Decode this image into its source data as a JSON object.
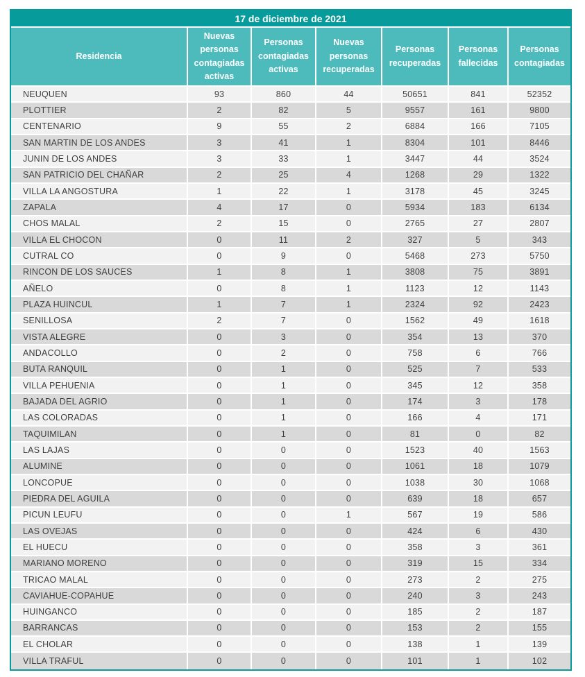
{
  "colors": {
    "frame_teal": "#089b9b",
    "header_teal": "#4dbabc",
    "row_light": "#f2f2f2",
    "row_dark": "#d9d9d9",
    "body_text": "#3f3f3f",
    "separator": "#ffffff"
  },
  "chart_data": {
    "type": "table",
    "title": "17 de diciembre de 2021",
    "columns": [
      "Residencia",
      "Nuevas personas contagiadas activas",
      "Personas contagiadas activas",
      "Nuevas personas recuperadas",
      "Personas recuperadas",
      "Personas fallecidas",
      "Personas contagiadas"
    ],
    "rows": [
      [
        "NEUQUEN",
        93,
        860,
        44,
        50651,
        841,
        52352
      ],
      [
        "PLOTTIER",
        2,
        82,
        5,
        9557,
        161,
        9800
      ],
      [
        "CENTENARIO",
        9,
        55,
        2,
        6884,
        166,
        7105
      ],
      [
        "SAN MARTIN DE LOS ANDES",
        3,
        41,
        1,
        8304,
        101,
        8446
      ],
      [
        "JUNIN DE LOS ANDES",
        3,
        33,
        1,
        3447,
        44,
        3524
      ],
      [
        "SAN PATRICIO DEL CHAÑAR",
        2,
        25,
        4,
        1268,
        29,
        1322
      ],
      [
        "VILLA LA ANGOSTURA",
        1,
        22,
        1,
        3178,
        45,
        3245
      ],
      [
        "ZAPALA",
        4,
        17,
        0,
        5934,
        183,
        6134
      ],
      [
        "CHOS MALAL",
        2,
        15,
        0,
        2765,
        27,
        2807
      ],
      [
        "VILLA EL CHOCON",
        0,
        11,
        2,
        327,
        5,
        343
      ],
      [
        "CUTRAL CO",
        0,
        9,
        0,
        5468,
        273,
        5750
      ],
      [
        "RINCON DE LOS SAUCES",
        1,
        8,
        1,
        3808,
        75,
        3891
      ],
      [
        "AÑELO",
        0,
        8,
        1,
        1123,
        12,
        1143
      ],
      [
        "PLAZA HUINCUL",
        1,
        7,
        1,
        2324,
        92,
        2423
      ],
      [
        "SENILLOSA",
        2,
        7,
        0,
        1562,
        49,
        1618
      ],
      [
        "VISTA ALEGRE",
        0,
        3,
        0,
        354,
        13,
        370
      ],
      [
        "ANDACOLLO",
        0,
        2,
        0,
        758,
        6,
        766
      ],
      [
        "BUTA RANQUIL",
        0,
        1,
        0,
        525,
        7,
        533
      ],
      [
        "VILLA PEHUENIA",
        0,
        1,
        0,
        345,
        12,
        358
      ],
      [
        "BAJADA DEL AGRIO",
        0,
        1,
        0,
        174,
        3,
        178
      ],
      [
        "LAS COLORADAS",
        0,
        1,
        0,
        166,
        4,
        171
      ],
      [
        "TAQUIMILAN",
        0,
        1,
        0,
        81,
        0,
        82
      ],
      [
        "LAS LAJAS",
        0,
        0,
        0,
        1523,
        40,
        1563
      ],
      [
        "ALUMINE",
        0,
        0,
        0,
        1061,
        18,
        1079
      ],
      [
        "LONCOPUE",
        0,
        0,
        0,
        1038,
        30,
        1068
      ],
      [
        "PIEDRA DEL AGUILA",
        0,
        0,
        0,
        639,
        18,
        657
      ],
      [
        "PICUN LEUFU",
        0,
        0,
        1,
        567,
        19,
        586
      ],
      [
        "LAS OVEJAS",
        0,
        0,
        0,
        424,
        6,
        430
      ],
      [
        "EL HUECU",
        0,
        0,
        0,
        358,
        3,
        361
      ],
      [
        "MARIANO MORENO",
        0,
        0,
        0,
        319,
        15,
        334
      ],
      [
        "TRICAO MALAL",
        0,
        0,
        0,
        273,
        2,
        275
      ],
      [
        "CAVIAHUE-COPAHUE",
        0,
        0,
        0,
        240,
        3,
        243
      ],
      [
        "HUINGANCO",
        0,
        0,
        0,
        185,
        2,
        187
      ],
      [
        "BARRANCAS",
        0,
        0,
        0,
        153,
        2,
        155
      ],
      [
        "EL CHOLAR",
        0,
        0,
        0,
        138,
        1,
        139
      ],
      [
        "VILLA TRAFUL",
        0,
        0,
        0,
        101,
        1,
        102
      ]
    ]
  }
}
